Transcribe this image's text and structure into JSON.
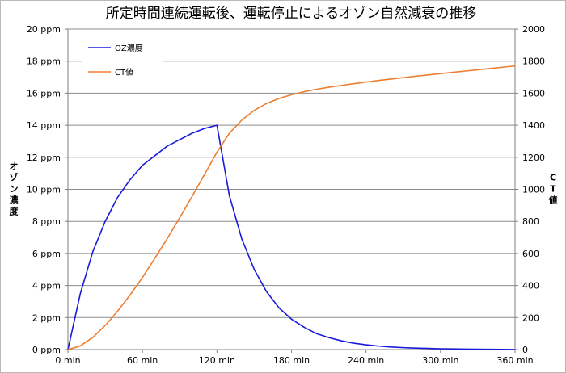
{
  "chart_data": {
    "type": "line",
    "title": "所定時間連続運転後、運転停止によるオゾン自然減衰の推移",
    "x": [
      0,
      10,
      20,
      30,
      40,
      50,
      60,
      70,
      80,
      90,
      100,
      110,
      120,
      130,
      140,
      150,
      160,
      170,
      180,
      190,
      200,
      210,
      220,
      230,
      240,
      250,
      260,
      270,
      280,
      290,
      300,
      310,
      320,
      330,
      340,
      350,
      360
    ],
    "x_tick_values": [
      0,
      60,
      120,
      180,
      240,
      300,
      360
    ],
    "x_tick_labels": [
      "0 min",
      "60 min",
      "120 min",
      "180 min",
      "240 min",
      "300 min",
      "360 min"
    ],
    "xlim": [
      0,
      360
    ],
    "y_left": {
      "label": "オゾン濃度",
      "ylim": [
        0,
        20
      ],
      "tick_values": [
        0,
        2,
        4,
        6,
        8,
        10,
        12,
        14,
        16,
        18,
        20
      ],
      "tick_labels": [
        "0 ppm",
        "2 ppm",
        "4 ppm",
        "6 ppm",
        "8 ppm",
        "10 ppm",
        "12 ppm",
        "14 ppm",
        "16 ppm",
        "18 ppm",
        "20 ppm"
      ]
    },
    "y_right": {
      "label": "CT値",
      "ylim": [
        0,
        2000
      ],
      "tick_values": [
        0,
        200,
        400,
        600,
        800,
        1000,
        1200,
        1400,
        1600,
        1800,
        2000
      ],
      "tick_labels": [
        "0",
        "200",
        "400",
        "600",
        "800",
        "1000",
        "1200",
        "1400",
        "1600",
        "1800",
        "2000"
      ]
    },
    "series": [
      {
        "name": "OZ濃度",
        "axis": "left",
        "color": "#1a1adb",
        "values": [
          0,
          3.5,
          6.1,
          8.0,
          9.5,
          10.6,
          11.5,
          12.1,
          12.7,
          13.1,
          13.5,
          13.8,
          14.0,
          9.6,
          6.9,
          5.0,
          3.6,
          2.6,
          1.9,
          1.4,
          1.0,
          0.75,
          0.55,
          0.4,
          0.3,
          0.22,
          0.16,
          0.12,
          0.09,
          0.07,
          0.05,
          0.04,
          0.03,
          0.02,
          0.015,
          0.01,
          0.0
        ]
      },
      {
        "name": "CT値",
        "axis": "right",
        "color": "#ed7d31",
        "values": [
          0,
          23,
          76,
          150,
          240,
          340,
          450,
          570,
          693,
          823,
          956,
          1093,
          1232,
          1350,
          1432,
          1493,
          1536,
          1567,
          1590,
          1609,
          1624,
          1637,
          1648,
          1659,
          1669,
          1679,
          1688,
          1697,
          1706,
          1714,
          1722,
          1730,
          1738,
          1746,
          1754,
          1762,
          1770
        ]
      }
    ],
    "grid": true,
    "legend_position": "top-left"
  }
}
